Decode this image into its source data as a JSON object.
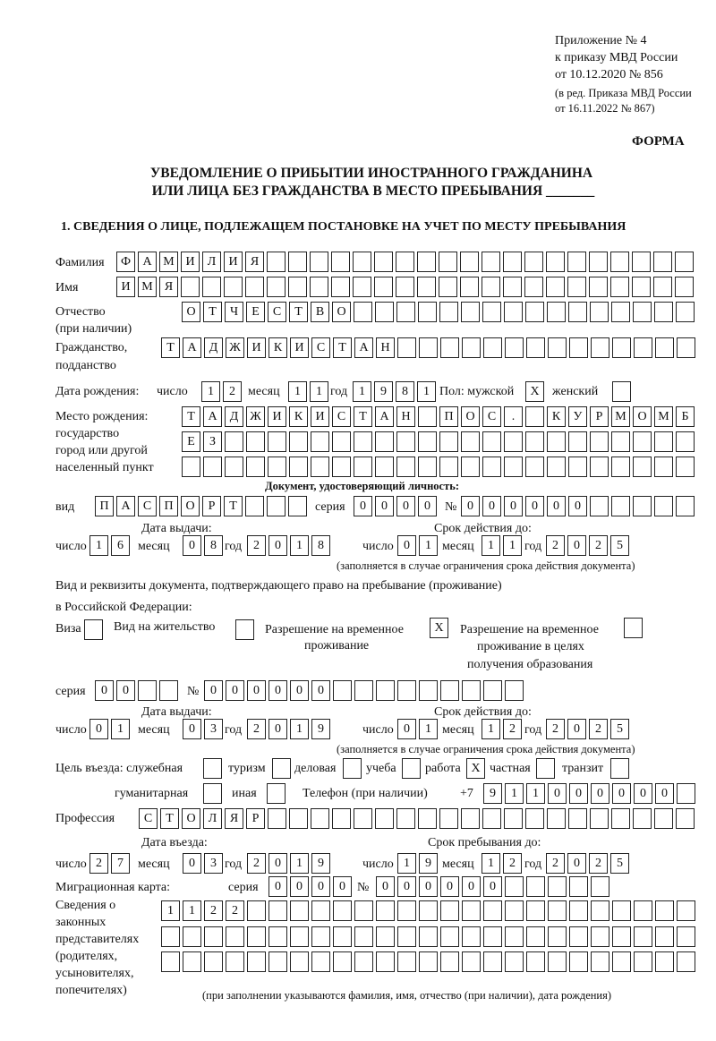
{
  "header": {
    "line1": "Приложение № 4",
    "line2": "к приказу МВД России",
    "line3": "от 10.12.2020 № 856",
    "line4": "(в ред. Приказа МВД России",
    "line5": "от 16.11.2022 № 867)",
    "forma": "ФОРМА",
    "title1": "УВЕДОМЛЕНИЕ О ПРИБЫТИИ ИНОСТРАННОГО ГРАЖДАНИНА",
    "title2": "ИЛИ ЛИЦА БЕЗ ГРАЖДАНСТВА В МЕСТО ПРЕБЫВАНИЯ _______",
    "section1": "1. СВЕДЕНИЯ О ЛИЦЕ, ПОДЛЕЖАЩЕМ ПОСТАНОВКЕ НА УЧЕТ ПО МЕСТУ ПРЕБЫВАНИЯ"
  },
  "labels": {
    "surname": "Фамилия",
    "name": "Имя",
    "patronymic1": "Отчество",
    "patronymic2": "(при наличии)",
    "citizenship1": "Гражданство,",
    "citizenship2": "подданство",
    "birth_date": "Дата рождения:",
    "day": "число",
    "month": "месяц",
    "year": "год",
    "sex": "Пол: мужской",
    "female": "женский",
    "birthplace1": "Место рождения:",
    "birthplace2": "государство",
    "birthplace3": "город или другой",
    "birthplace4": "населенный пункт",
    "id_doc": "Документ, удостоверяющий личность:",
    "kind": "вид",
    "series": "серия",
    "number": "№",
    "issue_date": "Дата выдачи:",
    "valid_until": "Срок действия до:",
    "validity_note": "(заполняется в случае ограничения срока действия документа)",
    "right_doc1": "Вид и реквизиты документа, подтверждающего право на пребывание (проживание)",
    "right_doc2": "в Российской Федерации:",
    "visa": "Виза",
    "residence": "Вид на жительство",
    "temp1": "Разрешение на временное",
    "temp2": "проживание",
    "edu1": "Разрешение на временное",
    "edu2": "проживание в целях",
    "edu3": "получения образования",
    "purpose": "Цель въезда: служебная",
    "tourism": "туризм",
    "business": "деловая",
    "study": "учеба",
    "work": "работа",
    "private": "частная",
    "transit": "транзит",
    "humanitarian": "гуманитарная",
    "other": "иная",
    "phone": "Телефон (при наличии)",
    "phone_prefix": "+7",
    "profession": "Профессия",
    "entry_date": "Дата въезда:",
    "stay_until": "Срок пребывания до:",
    "migration_card": "Миграционная карта:",
    "reps1": "Сведения о",
    "reps2": "законных",
    "reps3": "представителях",
    "reps4": "(родителях,",
    "reps5": "усыновителях,",
    "reps6": "попечителях)",
    "reps_note": "(при заполнении указываются фамилия, имя, отчество (при наличии), дата рождения)"
  },
  "fields": {
    "surname": [
      "Ф",
      "А",
      "М",
      "И",
      "Л",
      "И",
      "Я"
    ],
    "name": [
      "И",
      "М",
      "Я"
    ],
    "patronymic": [
      "О",
      "Т",
      "Ч",
      "Е",
      "С",
      "Т",
      "В",
      "О"
    ],
    "citizenship": [
      "Т",
      "А",
      "Д",
      "Ж",
      "И",
      "К",
      "И",
      "С",
      "Т",
      "А",
      "Н"
    ],
    "birth_day": [
      "1",
      "2"
    ],
    "birth_month": [
      "1",
      "1"
    ],
    "birth_year": [
      "1",
      "9",
      "8",
      "1"
    ],
    "sex_male": "X",
    "sex_female": "",
    "birthplace_row1": [
      "Т",
      "А",
      "Д",
      "Ж",
      "И",
      "К",
      "И",
      "С",
      "Т",
      "А",
      "Н",
      "",
      "П",
      "О",
      "С",
      ".",
      "",
      "К",
      "У",
      "Р",
      "М",
      "О",
      "М",
      "Б"
    ],
    "birthplace_row2": [
      "Е",
      "З"
    ],
    "birthplace_row3": [],
    "doc_kind": [
      "П",
      "А",
      "С",
      "П",
      "О",
      "Р",
      "Т"
    ],
    "doc_series": [
      "0",
      "0",
      "0",
      "0"
    ],
    "doc_number": [
      "0",
      "0",
      "0",
      "0",
      "0",
      "0"
    ],
    "doc_issue_day": [
      "1",
      "6"
    ],
    "doc_issue_month": [
      "0",
      "8"
    ],
    "doc_issue_year": [
      "2",
      "0",
      "1",
      "8"
    ],
    "doc_valid_day": [
      "0",
      "1"
    ],
    "doc_valid_month": [
      "1",
      "1"
    ],
    "doc_valid_year": [
      "2",
      "0",
      "2",
      "5"
    ],
    "right_visa": "",
    "right_residence": "",
    "right_temp": "X",
    "right_edu": "",
    "right_series": [
      "0",
      "0"
    ],
    "right_number": [
      "0",
      "0",
      "0",
      "0",
      "0",
      "0"
    ],
    "right_issue_day": [
      "0",
      "1"
    ],
    "right_issue_month": [
      "0",
      "3"
    ],
    "right_issue_year": [
      "2",
      "0",
      "1",
      "9"
    ],
    "right_valid_day": [
      "0",
      "1"
    ],
    "right_valid_month": [
      "1",
      "2"
    ],
    "right_valid_year": [
      "2",
      "0",
      "2",
      "5"
    ],
    "purpose_service": "",
    "purpose_tourism": "",
    "purpose_business": "",
    "purpose_study": "",
    "purpose_work": "X",
    "purpose_private": "",
    "purpose_transit": "",
    "purpose_humanitarian": "",
    "purpose_other": "",
    "phone": [
      "9",
      "1",
      "1",
      "0",
      "0",
      "0",
      "0",
      "0",
      "0"
    ],
    "profession": [
      "С",
      "Т",
      "О",
      "Л",
      "Я",
      "Р"
    ],
    "entry_day": [
      "2",
      "7"
    ],
    "entry_month": [
      "0",
      "3"
    ],
    "entry_year": [
      "2",
      "0",
      "1",
      "9"
    ],
    "stay_day": [
      "1",
      "9"
    ],
    "stay_month": [
      "1",
      "2"
    ],
    "stay_year": [
      "2",
      "0",
      "2",
      "5"
    ],
    "mig_series": [
      "0",
      "0",
      "0",
      "0"
    ],
    "mig_number": [
      "0",
      "0",
      "0",
      "0",
      "0",
      "0"
    ],
    "reps_row1": [
      "1",
      "1",
      "2",
      "2"
    ],
    "reps_row2": [],
    "reps_row3": []
  }
}
